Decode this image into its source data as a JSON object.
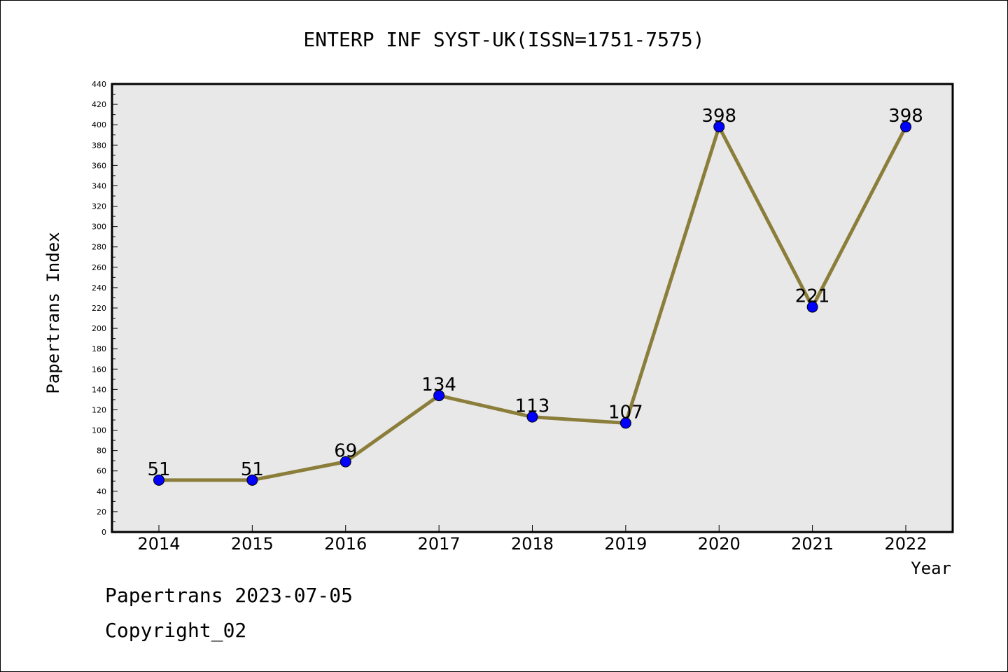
{
  "chart_data": {
    "type": "line",
    "title": "ENTERP INF SYST-UK(ISSN=1751-7575)",
    "xlabel": "Year",
    "ylabel": "Papertrans Index",
    "categories": [
      "2014",
      "2015",
      "2016",
      "2017",
      "2018",
      "2019",
      "2020",
      "2021",
      "2022"
    ],
    "values": [
      51,
      51,
      69,
      134,
      113,
      107,
      398,
      221,
      398
    ],
    "ylim": [
      0,
      440
    ],
    "ytick_step": 20,
    "grid": false,
    "colors": {
      "line": "#8b7d3a",
      "marker": "#0000ff",
      "plot_bg": "#e8e8e8"
    }
  },
  "footer": {
    "source": "Papertrans 2023-07-05",
    "copyright": "Copyright_02"
  }
}
